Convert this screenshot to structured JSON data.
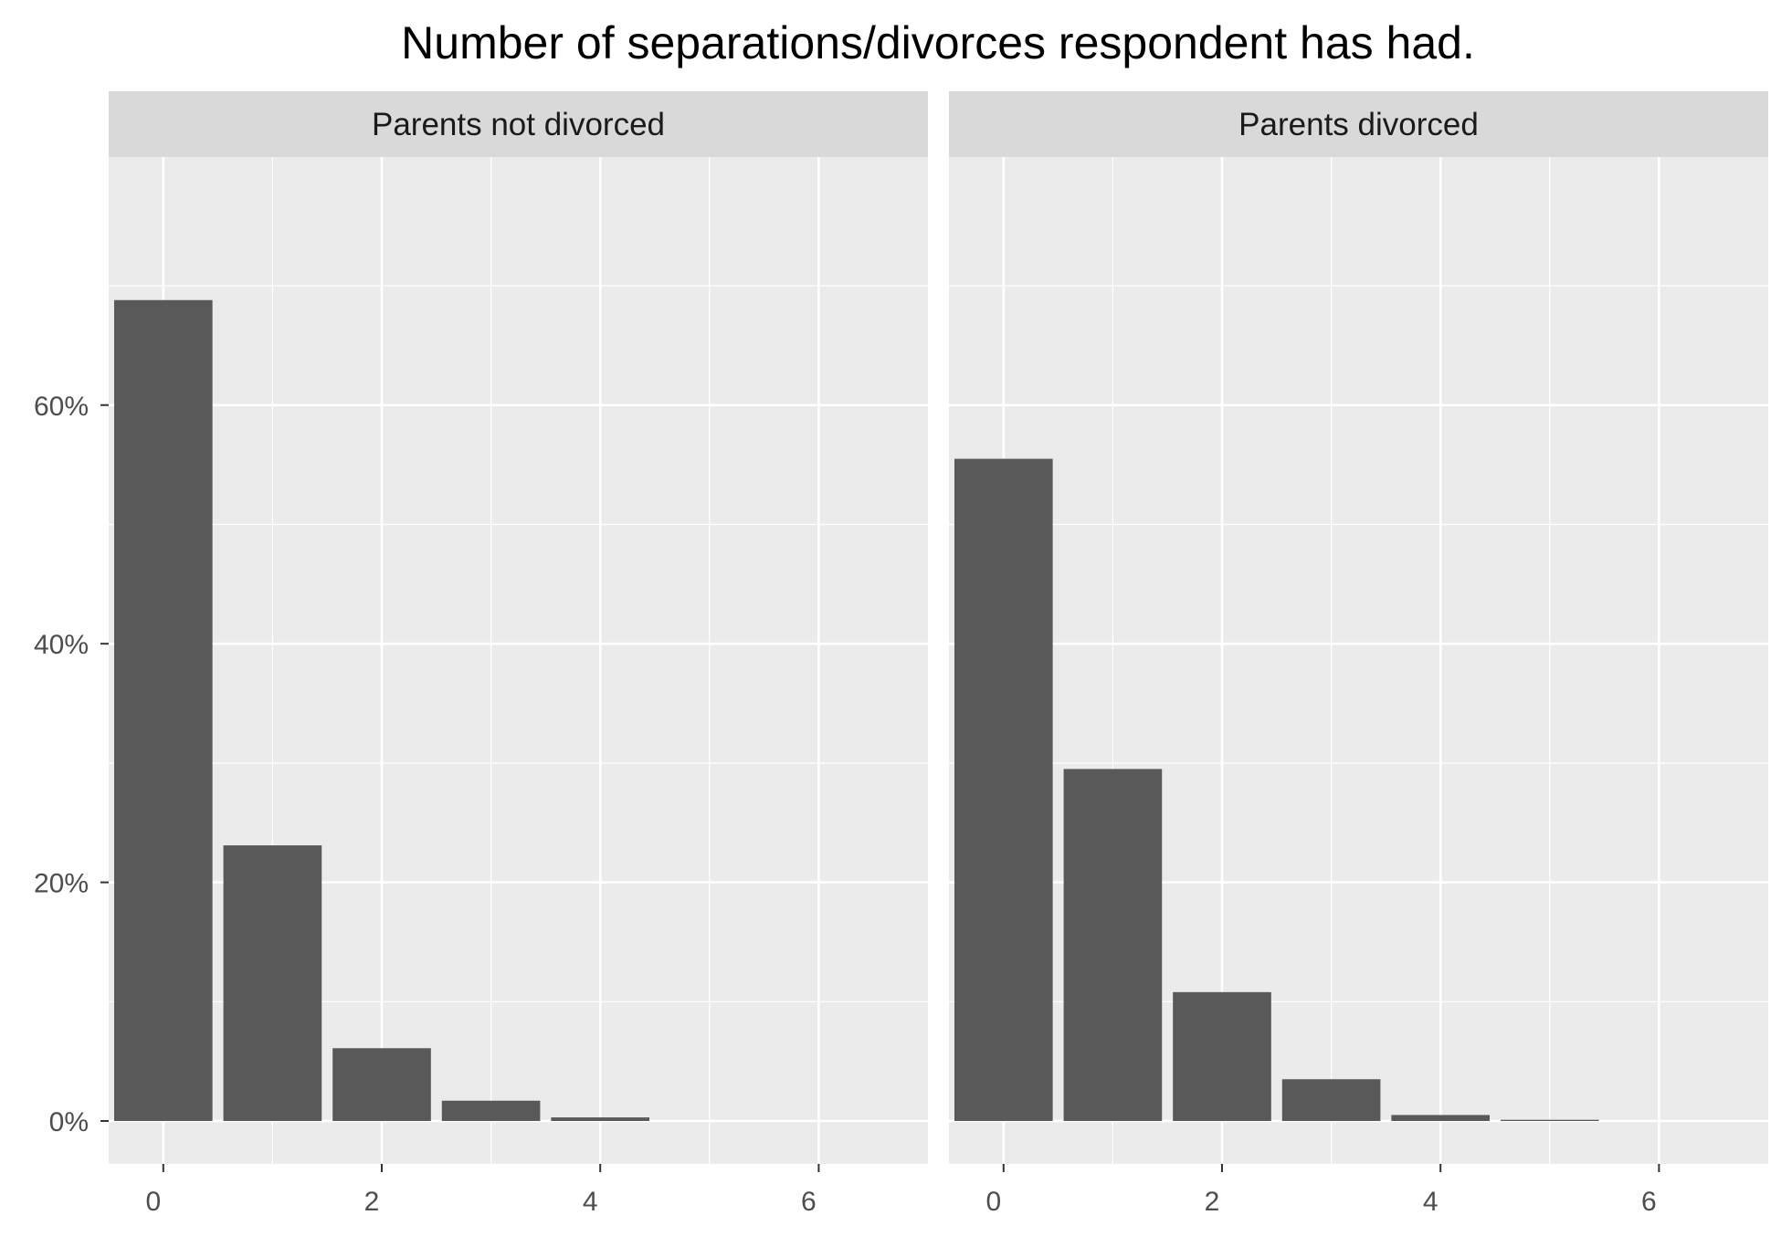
{
  "chart_data": {
    "type": "bar",
    "title": "Number of separations/divorces respondent has had.",
    "xlabel": "",
    "ylabel": "",
    "y_unit": "%",
    "xlim": [
      -0.5,
      7
    ],
    "ylim": [
      0,
      75
    ],
    "x_ticks": [
      0,
      2,
      4,
      6
    ],
    "x_tick_labels": [
      "0",
      "2",
      "4",
      "6"
    ],
    "y_ticks": [
      0,
      20,
      40,
      60
    ],
    "y_tick_labels": [
      "0%",
      "20%",
      "40%",
      "60%"
    ],
    "grid": true,
    "legend": "none",
    "colors": {
      "bar": "#595959",
      "panel": "#ebebeb",
      "strip": "#d9d9d9",
      "grid": "#ffffff",
      "axis_text": "#4d4d4d"
    },
    "panels": [
      {
        "label": "Parents not divorced",
        "bars": [
          {
            "x": 0,
            "value": 68.8
          },
          {
            "x": 1,
            "value": 23.1
          },
          {
            "x": 2,
            "value": 6.1
          },
          {
            "x": 3,
            "value": 1.7
          },
          {
            "x": 4,
            "value": 0.3
          }
        ]
      },
      {
        "label": "Parents divorced",
        "bars": [
          {
            "x": 0,
            "value": 55.5
          },
          {
            "x": 1,
            "value": 29.5
          },
          {
            "x": 2,
            "value": 10.8
          },
          {
            "x": 3,
            "value": 3.5
          },
          {
            "x": 4,
            "value": 0.5
          },
          {
            "x": 5,
            "value": 0.1
          }
        ]
      }
    ]
  }
}
